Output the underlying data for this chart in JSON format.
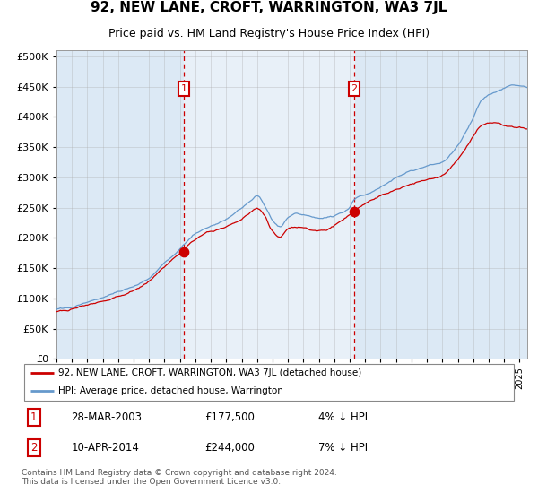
{
  "title": "92, NEW LANE, CROFT, WARRINGTON, WA3 7JL",
  "subtitle": "Price paid vs. HM Land Registry's House Price Index (HPI)",
  "title_fontsize": 11,
  "subtitle_fontsize": 9,
  "background_color": "#ffffff",
  "plot_bg_color": "#dce9f5",
  "ytick_values": [
    0,
    50000,
    100000,
    150000,
    200000,
    250000,
    300000,
    350000,
    400000,
    450000,
    500000
  ],
  "ylim": [
    0,
    510000
  ],
  "xlim_start": 1995.0,
  "xlim_end": 2025.5,
  "shade_start": 2003.24,
  "shade_end": 2014.28,
  "purchase1_x": 2003.24,
  "purchase1_y": 177500,
  "purchase1_label": "1",
  "purchase2_x": 2014.28,
  "purchase2_y": 244000,
  "purchase2_label": "2",
  "red_line_color": "#cc0000",
  "blue_line_color": "#6699cc",
  "shade_color": "#dce9f5",
  "grid_color": "#aaaaaa",
  "annotation_box_color": "#cc0000",
  "legend_entries": [
    "92, NEW LANE, CROFT, WARRINGTON, WA3 7JL (detached house)",
    "HPI: Average price, detached house, Warrington"
  ],
  "table_rows": [
    {
      "num": "1",
      "date": "28-MAR-2003",
      "price": "£177,500",
      "hpi": "4% ↓ HPI"
    },
    {
      "num": "2",
      "date": "10-APR-2014",
      "price": "£244,000",
      "hpi": "7% ↓ HPI"
    }
  ],
  "footnote": "Contains HM Land Registry data © Crown copyright and database right 2024.\nThis data is licensed under the Open Government Licence v3.0.",
  "hpi_waypoints": [
    [
      1995.0,
      82000
    ],
    [
      1996.0,
      86000
    ],
    [
      1997.0,
      93000
    ],
    [
      1998.0,
      100000
    ],
    [
      1999.0,
      108000
    ],
    [
      2000.0,
      118000
    ],
    [
      2001.0,
      132000
    ],
    [
      2002.0,
      155000
    ],
    [
      2003.0,
      178000
    ],
    [
      2003.24,
      185000
    ],
    [
      2004.0,
      205000
    ],
    [
      2005.0,
      218000
    ],
    [
      2006.0,
      230000
    ],
    [
      2007.0,
      245000
    ],
    [
      2007.5,
      255000
    ],
    [
      2008.0,
      265000
    ],
    [
      2008.5,
      248000
    ],
    [
      2009.0,
      225000
    ],
    [
      2009.5,
      215000
    ],
    [
      2010.0,
      230000
    ],
    [
      2010.5,
      235000
    ],
    [
      2011.0,
      232000
    ],
    [
      2011.5,
      228000
    ],
    [
      2012.0,
      225000
    ],
    [
      2012.5,
      228000
    ],
    [
      2013.0,
      232000
    ],
    [
      2013.5,
      238000
    ],
    [
      2014.0,
      248000
    ],
    [
      2014.28,
      262000
    ],
    [
      2015.0,
      272000
    ],
    [
      2016.0,
      285000
    ],
    [
      2017.0,
      300000
    ],
    [
      2018.0,
      310000
    ],
    [
      2019.0,
      318000
    ],
    [
      2020.0,
      325000
    ],
    [
      2021.0,
      355000
    ],
    [
      2022.0,
      400000
    ],
    [
      2022.5,
      425000
    ],
    [
      2023.0,
      435000
    ],
    [
      2023.5,
      440000
    ],
    [
      2024.0,
      445000
    ],
    [
      2024.5,
      450000
    ],
    [
      2025.0,
      448000
    ],
    [
      2025.5,
      445000
    ]
  ],
  "red_waypoints": [
    [
      1995.0,
      78000
    ],
    [
      1996.0,
      82000
    ],
    [
      1997.0,
      88000
    ],
    [
      1998.0,
      95000
    ],
    [
      1999.0,
      103000
    ],
    [
      2000.0,
      112000
    ],
    [
      2001.0,
      126000
    ],
    [
      2002.0,
      148000
    ],
    [
      2003.0,
      170000
    ],
    [
      2003.24,
      177500
    ],
    [
      2004.0,
      195000
    ],
    [
      2005.0,
      207000
    ],
    [
      2006.0,
      218000
    ],
    [
      2007.0,
      230000
    ],
    [
      2007.5,
      240000
    ],
    [
      2008.0,
      248000
    ],
    [
      2008.5,
      235000
    ],
    [
      2009.0,
      212000
    ],
    [
      2009.5,
      202000
    ],
    [
      2010.0,
      215000
    ],
    [
      2010.5,
      220000
    ],
    [
      2011.0,
      218000
    ],
    [
      2011.5,
      214000
    ],
    [
      2012.0,
      212000
    ],
    [
      2012.5,
      215000
    ],
    [
      2013.0,
      220000
    ],
    [
      2013.5,
      228000
    ],
    [
      2014.0,
      238000
    ],
    [
      2014.28,
      244000
    ],
    [
      2015.0,
      255000
    ],
    [
      2016.0,
      265000
    ],
    [
      2017.0,
      278000
    ],
    [
      2018.0,
      288000
    ],
    [
      2019.0,
      295000
    ],
    [
      2020.0,
      302000
    ],
    [
      2021.0,
      330000
    ],
    [
      2022.0,
      368000
    ],
    [
      2022.5,
      385000
    ],
    [
      2023.0,
      390000
    ],
    [
      2023.5,
      388000
    ],
    [
      2024.0,
      385000
    ],
    [
      2024.5,
      382000
    ],
    [
      2025.0,
      380000
    ],
    [
      2025.5,
      378000
    ]
  ]
}
